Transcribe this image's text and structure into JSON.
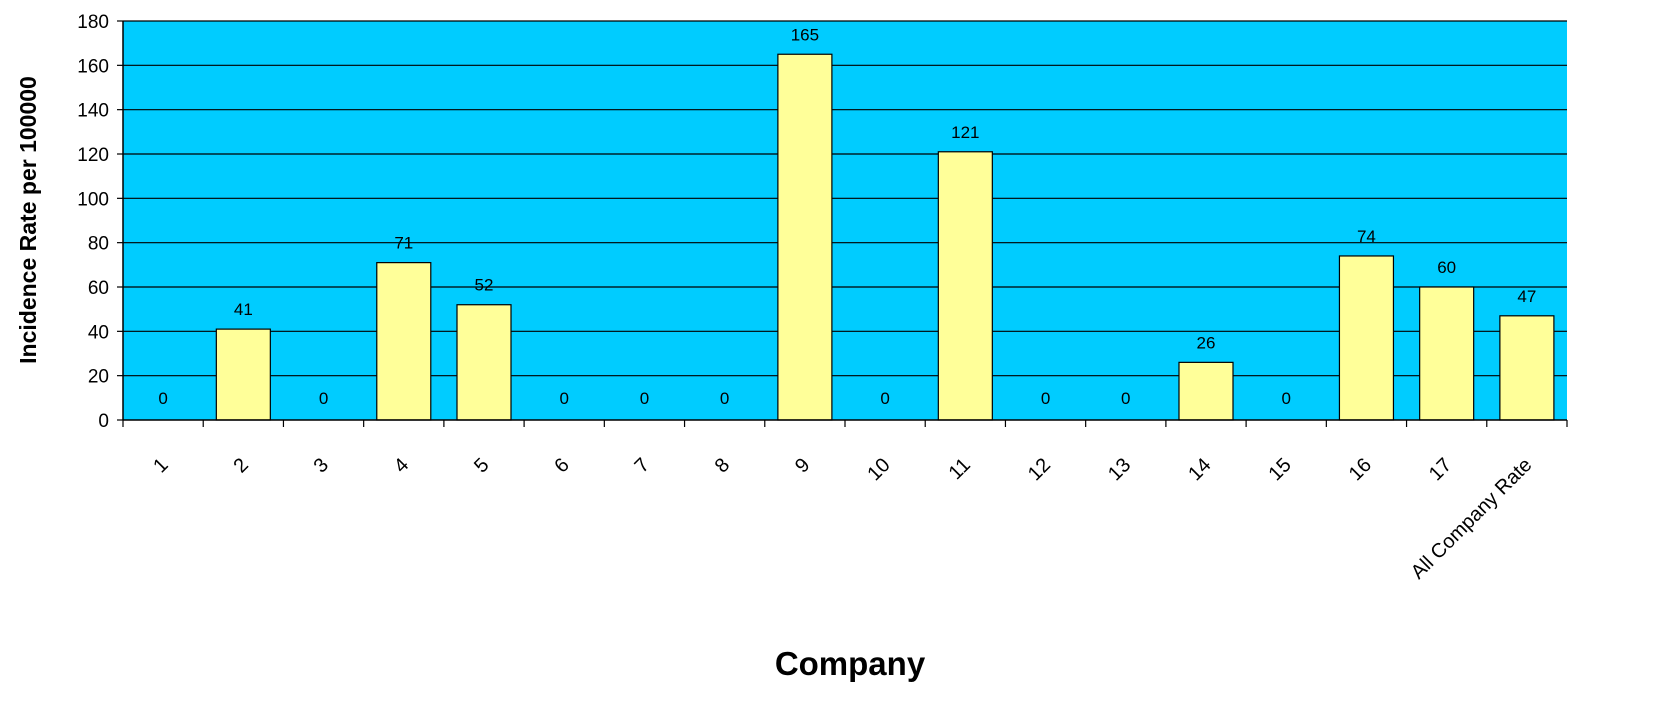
{
  "chart_data": {
    "type": "bar",
    "xlabel": "Company",
    "ylabel": "Incidence Rate per 100000",
    "categories": [
      "1",
      "2",
      "3",
      "4",
      "5",
      "6",
      "7",
      "8",
      "9",
      "10",
      "11",
      "12",
      "13",
      "14",
      "15",
      "16",
      "17",
      "All Company Rate"
    ],
    "values": [
      0,
      41,
      0,
      71,
      52,
      0,
      0,
      0,
      165,
      0,
      121,
      0,
      0,
      26,
      0,
      74,
      60,
      47
    ],
    "data_labels": [
      "0",
      "41",
      "0",
      "71",
      "52",
      "0",
      "0",
      "0",
      "165",
      "0",
      "121",
      "0",
      "0",
      "26",
      "0",
      "74",
      "60",
      "47"
    ],
    "ylim": [
      0,
      180
    ],
    "yticks": [
      "0",
      "20",
      "40",
      "60",
      "80",
      "100",
      "120",
      "140",
      "160",
      "180"
    ],
    "grid": true,
    "legend": "none",
    "colors": {
      "plot_background": "#00ccff",
      "bar_fill": "#ffff99",
      "bar_stroke": "#000000",
      "gridline": "#000000"
    }
  }
}
